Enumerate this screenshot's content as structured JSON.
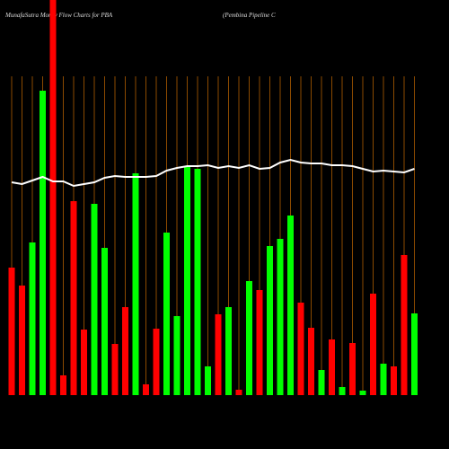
{
  "chart_data": {
    "type": "bar",
    "title": "MunafaSutra  Money Flow  Charts for PBA",
    "subtitle": "(Pembina  Pipeline  C",
    "categories": [
      null,
      null,
      null,
      null,
      null,
      null,
      null,
      null,
      null,
      null,
      null,
      null,
      null,
      null,
      null,
      null,
      null,
      null,
      null,
      null,
      null,
      null,
      null,
      null,
      null,
      null,
      null,
      null,
      null,
      null,
      null,
      null,
      null,
      null,
      null,
      null,
      null,
      null,
      null,
      null
    ],
    "values": [
      142,
      122,
      170,
      339,
      440,
      22,
      216,
      73,
      213,
      164,
      57,
      98,
      247,
      12,
      74,
      181,
      88,
      255,
      252,
      32,
      90,
      98,
      6,
      127,
      117,
      166,
      174,
      200,
      103,
      75,
      28,
      62,
      9,
      58,
      5,
      113,
      35,
      32,
      156,
      91
    ],
    "colors": [
      "#ff0000",
      "#ff0000",
      "#00ff00",
      "#00ff00",
      "#ff0000",
      "#ff0000",
      "#ff0000",
      "#ff0000",
      "#00ff00",
      "#00ff00",
      "#ff0000",
      "#ff0000",
      "#00ff00",
      "#ff0000",
      "#ff0000",
      "#00ff00",
      "#00ff00",
      "#00ff00",
      "#00ff00",
      "#00ff00",
      "#ff0000",
      "#00ff00",
      "#ff0000",
      "#00ff00",
      "#ff0000",
      "#00ff00",
      "#00ff00",
      "#00ff00",
      "#ff0000",
      "#ff0000",
      "#00ff00",
      "#ff0000",
      "#00ff00",
      "#ff0000",
      "#00ff00",
      "#ff0000",
      "#00ff00",
      "#ff0000",
      "#ff0000",
      "#00ff00"
    ],
    "line": {
      "color": "#ffffff",
      "values": [
        237,
        235,
        239,
        243,
        238,
        238,
        233,
        235,
        237,
        242,
        244,
        243,
        243,
        243,
        244,
        250,
        253,
        255,
        255,
        256,
        253,
        255,
        253,
        256,
        252,
        253,
        259,
        262,
        259,
        258,
        258,
        256,
        256,
        255,
        252,
        249,
        250,
        249,
        248,
        252
      ]
    },
    "ylim": [
      0,
      440
    ],
    "grid": true,
    "grid_color": "#8b4a00"
  }
}
